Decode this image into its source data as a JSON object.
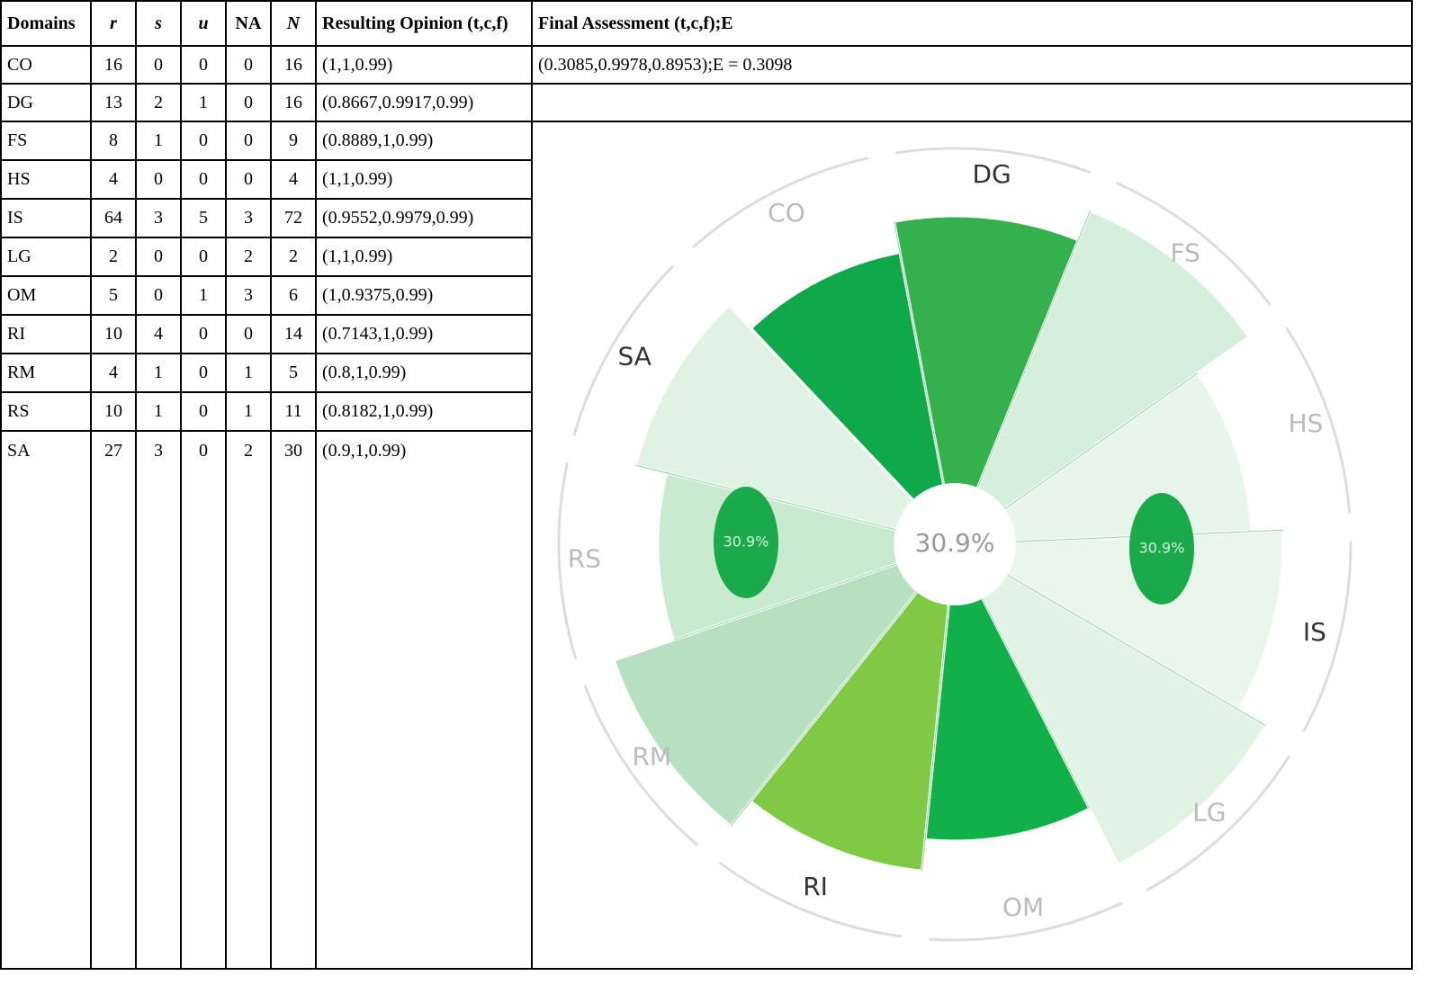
{
  "table": {
    "header": [
      "Domains",
      "r",
      "s",
      "u",
      "NA",
      "N",
      "Resulting Opinion (t,c,f)",
      "Final Assessment (t,c,f);E"
    ],
    "rows": [
      [
        "CO",
        16,
        0,
        0,
        0,
        16,
        "(1,1,0.99)"
      ],
      [
        "DG",
        13,
        2,
        1,
        0,
        16,
        "(0.8667,0.9917,0.99)"
      ],
      [
        "FS",
        8,
        1,
        0,
        0,
        9,
        "(0.8889,1,0.99)"
      ],
      [
        "HS",
        4,
        0,
        0,
        0,
        4,
        "(1,1,0.99)"
      ],
      [
        "IS",
        64,
        3,
        5,
        3,
        72,
        "(0.9552,0.9979,0.99)"
      ],
      [
        "LG",
        2,
        0,
        0,
        2,
        2,
        "(1,1,0.99)"
      ],
      [
        "OM",
        5,
        0,
        1,
        3,
        6,
        "(1,0.9375,0.99)"
      ],
      [
        "RI",
        10,
        4,
        0,
        0,
        14,
        "(0.7143,1,0.99)"
      ],
      [
        "RM",
        4,
        1,
        0,
        1,
        5,
        "(0.8,1,0.99)"
      ],
      [
        "RS",
        10,
        1,
        0,
        1,
        11,
        "(0.8182,1,0.99)"
      ],
      [
        "SA",
        27,
        3,
        0,
        2,
        30,
        "(0.9,1,0.99)"
      ]
    ],
    "final_assessment": "(0.3085,0.9978,0.8953);E = 0.3098"
  },
  "wheel": {
    "center_label": "30.9%",
    "side_labels": [
      "30.9%",
      "30.9%"
    ],
    "labels": [
      "CO",
      "DG",
      "FS",
      "HS",
      "IS",
      "LG",
      "OM",
      "RI",
      "RM",
      "RS",
      "SA"
    ]
  }
}
